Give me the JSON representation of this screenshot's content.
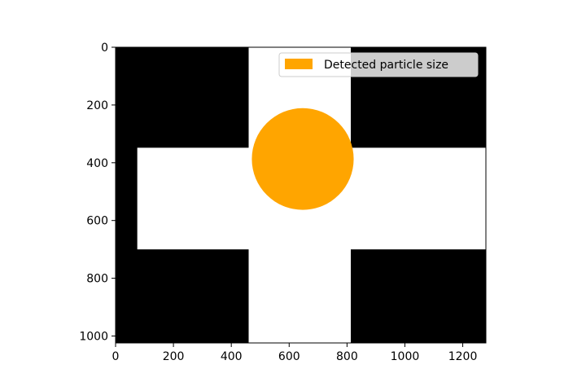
{
  "chart_data": {
    "type": "image",
    "image_size": {
      "width": 1280,
      "height": 1024
    },
    "xlim": [
      0,
      1280
    ],
    "ylim": [
      1024,
      0
    ],
    "xticks": [
      0,
      200,
      400,
      600,
      800,
      1000,
      1200
    ],
    "yticks": [
      0,
      200,
      400,
      600,
      800,
      1000
    ],
    "background_color": "#000000",
    "foreground_color": "#ffffff",
    "white_regions": [
      {
        "x0": 460,
        "x1": 813,
        "y0": 0,
        "y1": 1024
      },
      {
        "x0": 75,
        "x1": 1280,
        "y0": 348,
        "y1": 700
      }
    ],
    "particle": {
      "center_x": 647,
      "center_y": 387,
      "radius": 176,
      "color": "#ffa500"
    },
    "legend": {
      "position": "upper right",
      "entries": [
        {
          "label": "Detected particle size",
          "color": "#ffa500"
        }
      ]
    }
  }
}
